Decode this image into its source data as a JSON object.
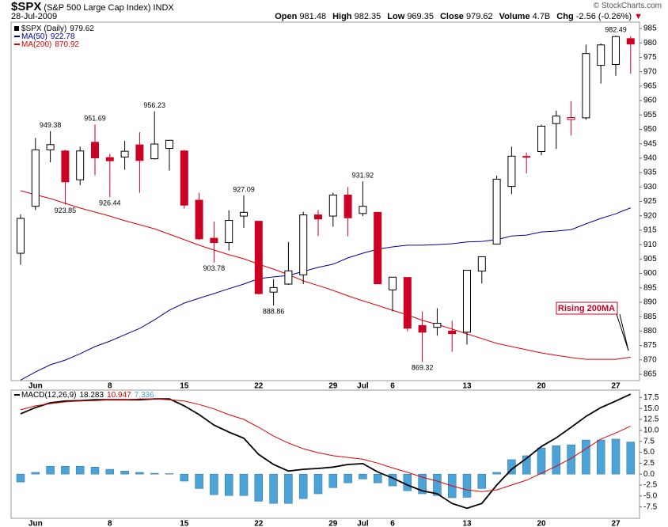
{
  "header": {
    "symbol": "$SPX",
    "name": "(S&P 500 Large Cap Index)",
    "exchange": "INDX",
    "date": "28-Jul-2009",
    "quote": [
      {
        "label": "Open",
        "value": 981.48
      },
      {
        "label": "High",
        "value": 982.35
      },
      {
        "label": "Low",
        "value": 969.35
      },
      {
        "label": "Close",
        "value": 979.62
      },
      {
        "label": "Volume",
        "value": "4.7B"
      },
      {
        "label": "Chg",
        "value": "-2.56 (-0.26%)"
      }
    ],
    "credit": "© StockCharts.com"
  },
  "chart_data": [
    {
      "type": "candlestick",
      "name": "$SPX (Daily)",
      "up_color": "#000000",
      "down_color": "#cc0022",
      "categories": [
        null,
        "Jun",
        null,
        null,
        null,
        null,
        "8",
        null,
        null,
        null,
        null,
        "15",
        null,
        null,
        null,
        null,
        "22",
        null,
        null,
        null,
        null,
        "29",
        null,
        "Jul",
        null,
        "6",
        null,
        null,
        null,
        null,
        "13",
        null,
        null,
        null,
        null,
        "20",
        null,
        null,
        null,
        null,
        "27",
        null
      ],
      "open": [
        907,
        923.3,
        942.9,
        942.5,
        932.5,
        945.5,
        940.2,
        940.4,
        944.6,
        939.8,
        943.4,
        942.5,
        925.4,
        912.2,
        910.7,
        919.9,
        918.1,
        893.5,
        896.3,
        899.5,
        920.3,
        919.9,
        927.2,
        920.8,
        921.2,
        894.3,
        898.6,
        881.9,
        881.3,
        880.0,
        879.6,
        900.8,
        910.2,
        930.2,
        940.6,
        942.3,
        952.0,
        953.4,
        954.0,
        972.2,
        972.5,
        981.48
      ],
      "high": [
        920.5,
        947.0,
        949.38,
        942.9,
        944.0,
        951.69,
        941.5,
        946.0,
        949.0,
        956.23,
        946.3,
        942.9,
        928.0,
        918.0,
        921.9,
        927.09,
        918.1,
        898.0,
        910.9,
        921.4,
        922.0,
        928.0,
        930.0,
        931.92,
        921.2,
        898.7,
        898.6,
        886.8,
        887.9,
        883.6,
        901.1,
        905.8,
        933.9,
        944.0,
        941.9,
        951.6,
        956.5,
        959.8,
        979.4,
        979.8,
        982.49,
        982.35
      ],
      "low": [
        903.0,
        922.0,
        938.6,
        923.85,
        930.6,
        934.0,
        926.44,
        936.0,
        928.0,
        939.5,
        935.7,
        922.5,
        911.6,
        903.78,
        907.9,
        915.8,
        892.7,
        888.86,
        896.0,
        896.3,
        913.0,
        916.2,
        912.9,
        919.9,
        896.4,
        886.8,
        879.9,
        869.32,
        878.4,
        872.8,
        875.3,
        896.5,
        910.2,
        927.5,
        934.7,
        941.0,
        943.2,
        947.9,
        953.3,
        965.9,
        968.6,
        969.35
      ],
      "close": [
        919.1,
        942.9,
        944.7,
        931.8,
        942.5,
        940.1,
        939.1,
        942.4,
        939.2,
        944.9,
        946.2,
        923.7,
        912.0,
        910.7,
        918.4,
        921.2,
        893.0,
        895.1,
        900.9,
        920.3,
        918.9,
        927.2,
        919.3,
        923.3,
        896.4,
        898.7,
        881.0,
        879.6,
        882.7,
        879.1,
        901.1,
        905.8,
        932.7,
        940.7,
        940.4,
        951.1,
        954.6,
        954.1,
        976.3,
        979.3,
        982.2,
        979.62
      ],
      "high_value_labels": [
        null,
        null,
        "949.38",
        null,
        null,
        "951.69",
        null,
        null,
        null,
        "956.23",
        null,
        null,
        null,
        null,
        null,
        "927.09",
        null,
        null,
        null,
        null,
        null,
        null,
        null,
        "931.92",
        null,
        null,
        null,
        null,
        null,
        null,
        null,
        null,
        null,
        null,
        null,
        null,
        null,
        null,
        null,
        null,
        "982.49",
        null
      ],
      "low_value_labels": [
        null,
        null,
        null,
        "923.85",
        null,
        null,
        "926.44",
        null,
        null,
        null,
        null,
        null,
        null,
        "903.78",
        null,
        null,
        null,
        "888.86",
        null,
        null,
        null,
        null,
        null,
        null,
        null,
        null,
        null,
        "869.32",
        null,
        null,
        null,
        null,
        null,
        null,
        null,
        null,
        null,
        null,
        null,
        null,
        null,
        null
      ],
      "series": [
        {
          "name": "MA(50)",
          "color": "#000099",
          "values": [
            863,
            865.8,
            868.3,
            869.9,
            872.1,
            874.6,
            876.5,
            878.7,
            880.9,
            883.9,
            887.2,
            889.7,
            891.4,
            893,
            894.7,
            896.3,
            898.2,
            898.8,
            899.3,
            900.7,
            902.1,
            903.2,
            905.4,
            907,
            908.4,
            909.2,
            909.8,
            909.8,
            910,
            910.3,
            910.9,
            911.1,
            911.7,
            913,
            913.3,
            914.4,
            914.7,
            915.2,
            917.2,
            919.1,
            920.7,
            922.78
          ]
        },
        {
          "name": "MA(200)",
          "color": "#dd0000",
          "values": [
            928.7,
            927.3,
            926,
            924.3,
            922.7,
            921.3,
            919.9,
            918.3,
            916.9,
            915.5,
            913.6,
            911.7,
            909.8,
            908.1,
            906.5,
            905.1,
            903.2,
            901.5,
            899.6,
            897.4,
            895.8,
            894.1,
            892.2,
            890.5,
            888.9,
            887.2,
            885.6,
            883.7,
            882.3,
            880.7,
            879,
            877.4,
            875.7,
            874.6,
            873.5,
            872.4,
            871.6,
            870.8,
            870.2,
            870.2,
            870.2,
            870.92
          ]
        }
      ],
      "ylim": [
        862.8,
        987.2
      ],
      "yticks": [
        865,
        870,
        875,
        880,
        885,
        890,
        895,
        900,
        905,
        910,
        915,
        920,
        925,
        930,
        935,
        940,
        945,
        950,
        955,
        960,
        965,
        970,
        975,
        980,
        985
      ],
      "grid": false,
      "annotation": "Rising 200MA"
    },
    {
      "type": "macd",
      "categories": [
        null,
        "Jun",
        null,
        null,
        null,
        null,
        "8",
        null,
        null,
        null,
        null,
        "15",
        null,
        null,
        null,
        null,
        "22",
        null,
        null,
        null,
        null,
        "29",
        null,
        "Jul",
        null,
        "6",
        null,
        null,
        null,
        null,
        "13",
        null,
        null,
        null,
        null,
        "20",
        null,
        null,
        null,
        null,
        "27",
        null
      ],
      "series": [
        {
          "name": "MACD(12,26,9)",
          "color": "#000000",
          "values": [
            13.8,
            15.2,
            16.3,
            16.7,
            16.8,
            17.0,
            17.0,
            17.0,
            17.0,
            17.2,
            17.2,
            15.6,
            13.6,
            11.2,
            9.6,
            8.2,
            4.5,
            2.2,
            0.7,
            1.1,
            1.3,
            1.6,
            2.2,
            2.4,
            0.5,
            -0.9,
            -2.5,
            -3.8,
            -4.5,
            -6.7,
            -7.8,
            -6.7,
            -2.5,
            1.1,
            3.6,
            6.3,
            8.3,
            10.7,
            13.2,
            15.2,
            16.7,
            18.283
          ]
        },
        {
          "color": "#e00000",
          "values": [
            14.7,
            15.6,
            16.1,
            16.5,
            16.7,
            16.8,
            17.0,
            17.0,
            17.2,
            17.2,
            17.0,
            16.7,
            15.9,
            14.9,
            13.6,
            12.5,
            10.7,
            8.7,
            7.1,
            5.8,
            4.9,
            4.2,
            3.8,
            3.4,
            2.5,
            1.4,
            0.4,
            -0.7,
            -1.6,
            -2.7,
            -3.6,
            -4.0,
            -3.6,
            -2.5,
            -1.4,
            0.2,
            1.8,
            3.6,
            5.8,
            8.0,
            9.4,
            10.947
          ]
        },
        {
          "color": "#4ca3d8",
          "bars": true,
          "values": [
            -1.8,
            0.4,
            1.8,
            1.8,
            1.8,
            1.6,
            1.1,
            0.7,
            0.4,
            0.2,
            0.1,
            -1.6,
            -3.3,
            -4.7,
            -4.9,
            -4.9,
            -6.2,
            -6.7,
            -6.7,
            -5.6,
            -4.5,
            -3.1,
            -2.0,
            -1.1,
            -2.0,
            -2.7,
            -3.8,
            -4.5,
            -4.9,
            -5.4,
            -5.3,
            -3.3,
            0.4,
            3.3,
            4.2,
            6.0,
            6.5,
            6.7,
            7.8,
            7.8,
            8.0,
            7.336
          ]
        }
      ],
      "ylim": [
        -10.1,
        19.2
      ],
      "yticks": [
        17.5,
        {
          "value": 15,
          "label": "15.0"
        },
        12.5,
        {
          "value": 10,
          "label": "10.0"
        },
        7.5,
        {
          "value": 5,
          "label": "5.0"
        },
        2.5,
        {
          "value": 0,
          "label": "0.0"
        },
        -2.5,
        {
          "value": -5,
          "label": "-5.0"
        },
        -7.5
      ]
    }
  ]
}
